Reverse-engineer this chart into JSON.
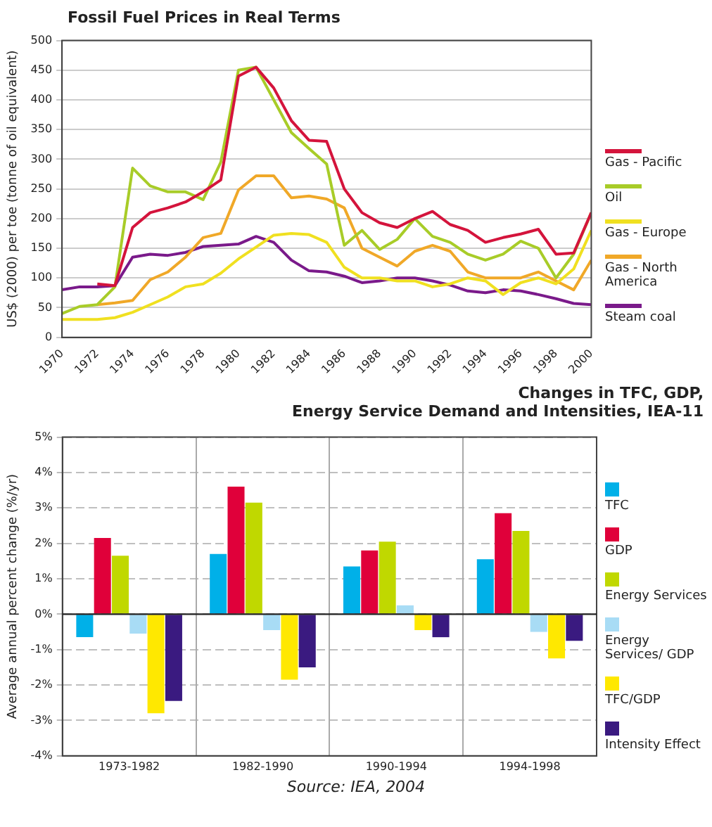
{
  "chart_data": [
    {
      "type": "line",
      "title": "Fossil Fuel Prices in Real Terms",
      "ylabel": "US$ (2000) per toe (tonne of oil equivalent)",
      "x": [
        1970,
        1971,
        1972,
        1973,
        1974,
        1975,
        1976,
        1977,
        1978,
        1979,
        1980,
        1981,
        1982,
        1983,
        1984,
        1985,
        1986,
        1987,
        1988,
        1989,
        1990,
        1991,
        1992,
        1993,
        1994,
        1995,
        1996,
        1997,
        1998,
        1999,
        2000
      ],
      "series": [
        {
          "name": "Gas - Pacific",
          "color": "#d4143c",
          "values": [
            null,
            null,
            90,
            87,
            185,
            210,
            218,
            228,
            245,
            265,
            440,
            455,
            420,
            365,
            332,
            330,
            250,
            210,
            193,
            185,
            200,
            212,
            190,
            180,
            160,
            168,
            174,
            182,
            140,
            142,
            210
          ]
        },
        {
          "name": "Oil",
          "color": "#a8cc28",
          "values": [
            40,
            52,
            55,
            85,
            285,
            255,
            245,
            245,
            232,
            295,
            450,
            455,
            400,
            345,
            318,
            292,
            155,
            180,
            148,
            165,
            200,
            170,
            160,
            140,
            130,
            140,
            162,
            150,
            100,
            140,
            210
          ]
        },
        {
          "name": "Gas - Europe",
          "color": "#f0e020",
          "values": [
            30,
            30,
            30,
            33,
            42,
            55,
            68,
            85,
            90,
            108,
            132,
            152,
            172,
            175,
            173,
            160,
            118,
            100,
            100,
            95,
            95,
            85,
            90,
            100,
            95,
            72,
            92,
            100,
            90,
            115,
            180
          ]
        },
        {
          "name": "Gas - North America",
          "color": "#f0a828",
          "values": [
            null,
            null,
            55,
            58,
            62,
            97,
            110,
            135,
            168,
            175,
            248,
            272,
            272,
            235,
            238,
            233,
            218,
            150,
            135,
            120,
            145,
            155,
            145,
            110,
            100,
            100,
            100,
            110,
            95,
            80,
            130
          ]
        },
        {
          "name": "Steam coal",
          "color": "#7a1a8a",
          "values": [
            80,
            85,
            85,
            87,
            135,
            140,
            138,
            143,
            153,
            155,
            157,
            170,
            160,
            130,
            112,
            110,
            103,
            92,
            95,
            100,
            100,
            95,
            88,
            78,
            75,
            80,
            78,
            72,
            65,
            57,
            55
          ]
        }
      ],
      "xlim": [
        1970,
        2000
      ],
      "xticks": [
        1970,
        1972,
        1974,
        1976,
        1978,
        1980,
        1982,
        1984,
        1986,
        1988,
        1990,
        1992,
        1994,
        1996,
        1998,
        2000
      ],
      "ylim": [
        0,
        500
      ],
      "yticks": [
        0,
        50,
        100,
        150,
        200,
        250,
        300,
        350,
        400,
        450,
        500
      ],
      "grid": "y",
      "legend": "right"
    },
    {
      "type": "bar",
      "title": "Changes in TFC, GDP,\nEnergy Service Demand and Intensities, IEA-11",
      "ylabel": "Average annual percent change (%/yr)",
      "categories": [
        "1973-1982",
        "1982-1990",
        "1990-1994",
        "1994-1998"
      ],
      "series": [
        {
          "name": "TFC",
          "color": "#00b0e8",
          "values": [
            -0.65,
            1.7,
            1.35,
            1.55
          ]
        },
        {
          "name": "GDP",
          "color": "#e0003a",
          "values": [
            2.15,
            3.6,
            1.8,
            2.85
          ]
        },
        {
          "name": "Energy Services",
          "color": "#c0d800",
          "values": [
            1.65,
            3.15,
            2.05,
            2.35
          ]
        },
        {
          "name": "Energy Services/ GDP",
          "color": "#a8dcf5",
          "values": [
            -0.55,
            -0.45,
            0.25,
            -0.5
          ]
        },
        {
          "name": "TFC/GDP",
          "color": "#ffe800",
          "values": [
            -2.8,
            -1.85,
            -0.45,
            -1.25
          ]
        },
        {
          "name": "Intensity Effect",
          "color": "#3a1a80",
          "values": [
            -2.45,
            -1.5,
            -0.65,
            -0.75
          ]
        }
      ],
      "ylim": [
        -4,
        5
      ],
      "yticks": [
        {
          "value": -4,
          "label": "-4%"
        },
        {
          "value": -3,
          "label": "-3%"
        },
        {
          "value": -2,
          "label": "-2%"
        },
        {
          "value": -1,
          "label": "-1%"
        },
        {
          "value": 0,
          "label": "0%"
        },
        {
          "value": 1,
          "label": "1%"
        },
        {
          "value": 2,
          "label": "2%"
        },
        {
          "value": 3,
          "label": "3%"
        },
        {
          "value": 4,
          "label": "4%"
        },
        {
          "value": 5,
          "label": "5%"
        }
      ],
      "grid": true,
      "legend": "right",
      "ref_lines": [
        {
          "axis": "y",
          "value": 0
        }
      ],
      "annotations": [
        "Source: IEA, 2004"
      ]
    }
  ]
}
